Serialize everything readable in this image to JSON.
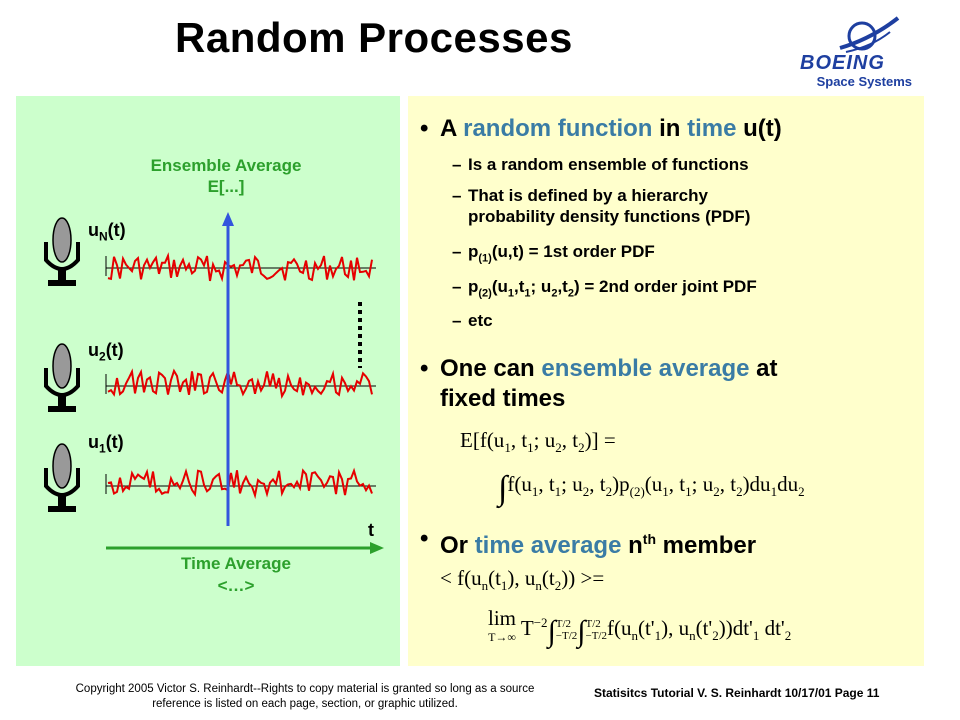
{
  "title": "Random Processes",
  "logo": {
    "brand": "BOEING",
    "sub": "Space Systems"
  },
  "left": {
    "ensemble_title": "Ensemble Average",
    "ensemble_expr": "E[...]",
    "labels": {
      "uN_base": "u",
      "uN_sub": "N",
      "uN_arg": "(t)",
      "u2_base": "u",
      "u2_sub": "2",
      "u2_arg": "(t)",
      "u1_base": "u",
      "u1_sub": "1",
      "u1_arg": "(t)"
    },
    "t_label": "t",
    "time_avg_title": "Time Average",
    "time_avg_expr": "<…>",
    "colors": {
      "wave": "#e60000",
      "ensemble_axis": "#3355dd",
      "time_axis": "#2ca02c"
    }
  },
  "right": {
    "b1_pre": "A ",
    "b1_h1": "random function",
    "b1_mid": " in ",
    "b1_h2": "time",
    "b1_post": " u(t)",
    "s1": "Is a random ensemble of functions",
    "s2_l1": "That is defined by a hierarchy",
    "s2_l2": "probability density functions (PDF)",
    "s3_a": "p",
    "s3_sub": "(1)",
    "s3_b": "(u,t) = 1st order PDF",
    "s4_a": "p",
    "s4_sub": "(2)",
    "s4_b": "(u",
    "s4_s1": "1",
    "s4_c": ",t",
    "s4_s2": "1",
    "s4_d": "; u",
    "s4_s3": "2",
    "s4_e": ",t",
    "s4_s4": "2",
    "s4_f": ") = 2nd order joint PDF",
    "s5": "etc",
    "dash": "–",
    "bullet_char": "•",
    "b2_pre": "One can ",
    "b2_h": "ensemble average",
    "b2_post": " at",
    "b2_l2": "fixed times",
    "b3_pre": "Or ",
    "b3_h": "time average",
    "b3_mid": " n",
    "b3_sup": "th",
    "b3_post": " member",
    "highlight_color": "#3a7ca5"
  },
  "footer": {
    "copyright_l1": "Copyright 2005 Victor S. Reinhardt--Rights to copy material is granted so long as a source",
    "copyright_l2": "reference is listed on each page, section, or graphic utilized.",
    "page_info": "Statisitcs Tutorial V. S. Reinhardt 10/17/01 Page 11"
  }
}
